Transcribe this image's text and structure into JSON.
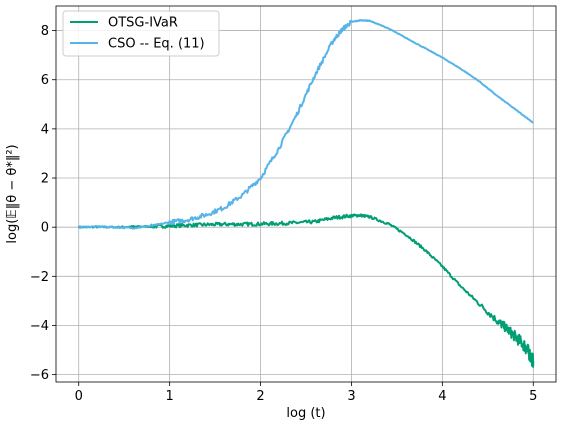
{
  "chart_data": {
    "type": "line",
    "xlabel": "log (t)",
    "ylabel": "log(𝔼‖θ − θ*‖²)",
    "xlim": [
      -0.25,
      5.25
    ],
    "ylim": [
      -6.3,
      9.0
    ],
    "xticks": [
      0,
      1,
      2,
      3,
      4,
      5
    ],
    "yticks": [
      -6,
      -4,
      -2,
      0,
      2,
      4,
      6,
      8
    ],
    "xtick_labels": [
      "0",
      "1",
      "2",
      "3",
      "4",
      "5"
    ],
    "ytick_labels": [
      "−6",
      "−4",
      "−2",
      "0",
      "2",
      "4",
      "6",
      "8"
    ],
    "grid": true,
    "legend_position": "top-left",
    "series": [
      {
        "name": "OTSG-IVaR",
        "color": "#009e73",
        "x": [
          0,
          0.2,
          0.4,
          0.6,
          0.8,
          1.0,
          1.2,
          1.4,
          1.6,
          1.8,
          2.0,
          2.2,
          2.4,
          2.6,
          2.8,
          3.0,
          3.1,
          3.2,
          3.4,
          3.6,
          3.8,
          4.0,
          4.2,
          4.4,
          4.6,
          4.7,
          4.8,
          4.9,
          4.95,
          5.0
        ],
        "y": [
          0,
          0.01,
          0.0,
          0.02,
          0.03,
          0.05,
          0.08,
          0.1,
          0.12,
          0.12,
          0.13,
          0.15,
          0.18,
          0.22,
          0.38,
          0.47,
          0.48,
          0.42,
          0.15,
          -0.3,
          -0.9,
          -1.6,
          -2.4,
          -3.1,
          -3.8,
          -4.1,
          -4.45,
          -4.8,
          -5.1,
          -5.45
        ]
      },
      {
        "name": "CSO -- Eq. (11)",
        "color": "#56b4e9",
        "x": [
          0,
          0.2,
          0.4,
          0.6,
          0.8,
          1.0,
          1.2,
          1.4,
          1.6,
          1.8,
          2.0,
          2.2,
          2.4,
          2.6,
          2.8,
          2.9,
          3.0,
          3.1,
          3.2,
          3.4,
          3.6,
          3.8,
          4.0,
          4.2,
          4.4,
          4.6,
          4.8,
          5.0
        ],
        "y": [
          0,
          0.02,
          0.0,
          -0.03,
          0.05,
          0.2,
          0.3,
          0.5,
          0.8,
          1.3,
          2.0,
          3.2,
          4.6,
          6.2,
          7.6,
          8.05,
          8.35,
          8.42,
          8.4,
          8.1,
          7.7,
          7.3,
          6.9,
          6.45,
          5.95,
          5.35,
          4.8,
          4.25
        ]
      }
    ]
  }
}
